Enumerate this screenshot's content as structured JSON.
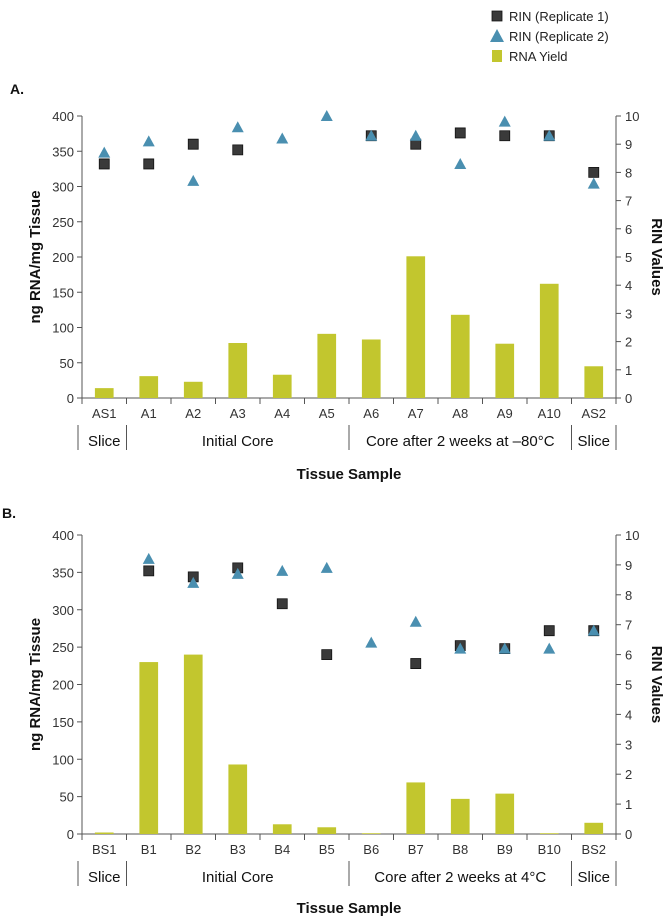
{
  "legend": {
    "items": [
      {
        "label": "RIN (Replicate 1)",
        "marker": "square",
        "color": "#3a3a3a"
      },
      {
        "label": "RIN (Replicate 2)",
        "marker": "triangle",
        "color": "#4a8fb0"
      },
      {
        "label": "RNA Yield",
        "marker": "bar",
        "color": "#c2c62e"
      }
    ]
  },
  "colors": {
    "bar": "#c2c62e",
    "rep1": "#3a3a3a",
    "rep2": "#4a8fb0",
    "axis": "#555555"
  },
  "chart_data": [
    {
      "panel_label": "A.",
      "type": "bar",
      "combined_with": "scatter",
      "categories": [
        "AS1",
        "A1",
        "A2",
        "A3",
        "A4",
        "A5",
        "A6",
        "A7",
        "A8",
        "A9",
        "A10",
        "AS2"
      ],
      "groups": [
        {
          "label": "Slice",
          "categories": [
            "AS1"
          ]
        },
        {
          "label": "Initial Core",
          "categories": [
            "A1",
            "A2",
            "A3",
            "A4",
            "A5"
          ]
        },
        {
          "label": "Core after 2 weeks at –80°C",
          "categories": [
            "A6",
            "A7",
            "A8",
            "A9",
            "A10"
          ]
        },
        {
          "label": "Slice",
          "categories": [
            "AS2"
          ]
        }
      ],
      "xlabel": "Tissue Sample",
      "ylabel": "ng RNA/mg Tissue",
      "y2label": "RIN Values",
      "ylim": [
        0,
        400
      ],
      "y2lim": [
        0,
        10
      ],
      "yticks": [
        0,
        50,
        100,
        150,
        200,
        250,
        300,
        350,
        400
      ],
      "y2ticks": [
        0,
        1,
        2,
        3,
        4,
        5,
        6,
        7,
        8,
        9,
        10
      ],
      "series": [
        {
          "name": "RNA Yield",
          "axis": "left",
          "kind": "bar",
          "values": [
            14,
            31,
            23,
            78,
            33,
            91,
            83,
            201,
            118,
            77,
            162,
            45
          ]
        },
        {
          "name": "RIN (Replicate 1)",
          "axis": "right",
          "kind": "square",
          "values": [
            8.3,
            8.3,
            9.0,
            8.8,
            null,
            null,
            9.3,
            9.0,
            9.4,
            9.3,
            9.3,
            8.0
          ]
        },
        {
          "name": "RIN (Replicate 2)",
          "axis": "right",
          "kind": "triangle",
          "values": [
            8.7,
            9.1,
            7.7,
            9.6,
            9.2,
            10.0,
            9.3,
            9.3,
            8.3,
            9.8,
            9.3,
            7.6
          ]
        }
      ]
    },
    {
      "panel_label": "B.",
      "type": "bar",
      "combined_with": "scatter",
      "categories": [
        "BS1",
        "B1",
        "B2",
        "B3",
        "B4",
        "B5",
        "B6",
        "B7",
        "B8",
        "B9",
        "B10",
        "BS2"
      ],
      "groups": [
        {
          "label": "Slice",
          "categories": [
            "BS1"
          ]
        },
        {
          "label": "Initial Core",
          "categories": [
            "B1",
            "B2",
            "B3",
            "B4",
            "B5"
          ]
        },
        {
          "label": "Core after 2 weeks at 4°C",
          "categories": [
            "B6",
            "B7",
            "B8",
            "B9",
            "B10"
          ]
        },
        {
          "label": "Slice",
          "categories": [
            "BS2"
          ]
        }
      ],
      "xlabel": "Tissue Sample",
      "ylabel": "ng RNA/mg Tissue",
      "y2label": "RIN Values",
      "ylim": [
        0,
        400
      ],
      "y2lim": [
        0,
        10
      ],
      "yticks": [
        0,
        50,
        100,
        150,
        200,
        250,
        300,
        350,
        400
      ],
      "y2ticks": [
        0,
        1,
        2,
        3,
        4,
        5,
        6,
        7,
        8,
        9,
        10
      ],
      "series": [
        {
          "name": "RNA Yield",
          "axis": "left",
          "kind": "bar",
          "values": [
            2,
            230,
            240,
            93,
            13,
            9,
            1,
            69,
            47,
            54,
            1,
            15
          ]
        },
        {
          "name": "RIN (Replicate 1)",
          "axis": "right",
          "kind": "square",
          "values": [
            null,
            8.8,
            8.6,
            8.9,
            7.7,
            6.0,
            null,
            5.7,
            6.3,
            6.2,
            6.8,
            6.8
          ]
        },
        {
          "name": "RIN (Replicate 2)",
          "axis": "right",
          "kind": "triangle",
          "values": [
            null,
            9.2,
            8.4,
            8.7,
            8.8,
            8.9,
            6.4,
            7.1,
            6.2,
            6.2,
            6.2,
            6.8
          ]
        }
      ]
    }
  ]
}
